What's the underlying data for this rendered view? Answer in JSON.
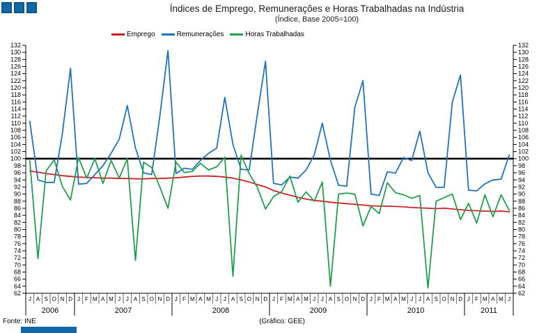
{
  "header": {
    "title": "Índices de Emprego, Remunerações e Horas Trabalhadas na Indústria",
    "subtitle": "(Índice, Base 2005=100)"
  },
  "legend": {
    "items": [
      {
        "label": "Emprego",
        "color": "#ce2024"
      },
      {
        "label": "Remunerações",
        "color": "#2172bd"
      },
      {
        "label": "Horas Trabalhadas",
        "color": "#1fa04d"
      }
    ]
  },
  "footer": {
    "source": "Fonte: INE",
    "credit": "(Gráfico: GEE)"
  },
  "logo": {
    "square_count": 3,
    "fill": "#1168a8",
    "border": "#0c568c"
  },
  "chart_data": {
    "type": "line",
    "title": "Índices de Emprego, Remunerações e Horas Trabalhadas na Indústria (Índice, Base 2005=100)",
    "ylim": [
      62,
      132
    ],
    "ytick_step": 2,
    "reference_line": {
      "value": 100,
      "color": "#000000"
    },
    "axis_color": "#000000",
    "grid": false,
    "legend_position": "top",
    "x_months": [
      "J",
      "A",
      "S",
      "O",
      "N",
      "D",
      "J",
      "F",
      "M",
      "A",
      "M",
      "J",
      "J",
      "A",
      "S",
      "O",
      "N",
      "D",
      "J",
      "F",
      "M",
      "A",
      "M",
      "J",
      "J",
      "A",
      "S",
      "O",
      "N",
      "D",
      "J",
      "F",
      "M",
      "A",
      "M",
      "J",
      "J",
      "A",
      "S",
      "O",
      "N",
      "D",
      "J",
      "F",
      "M",
      "A",
      "M",
      "J",
      "J",
      "A",
      "S",
      "O",
      "N",
      "D",
      "J",
      "F",
      "M",
      "A",
      "M",
      "J"
    ],
    "years": [
      {
        "label": "2006",
        "count": 6
      },
      {
        "label": "2007",
        "count": 12
      },
      {
        "label": "2008",
        "count": 12
      },
      {
        "label": "2009",
        "count": 12
      },
      {
        "label": "2010",
        "count": 12
      },
      {
        "label": "2011",
        "count": 6
      }
    ],
    "series": [
      {
        "name": "Emprego",
        "color": "#ce2024",
        "values": [
          96.5,
          96.2,
          95.8,
          95.5,
          95.2,
          95.0,
          94.8,
          94.7,
          94.6,
          94.5,
          94.5,
          94.4,
          94.4,
          94.3,
          94.3,
          94.4,
          94.4,
          94.5,
          94.6,
          94.8,
          95.0,
          95.1,
          95.1,
          95.0,
          94.8,
          94.5,
          94.0,
          93.4,
          92.7,
          92.0,
          91.0,
          90.3,
          89.7,
          89.1,
          88.6,
          88.2,
          88.0,
          87.7,
          87.5,
          87.3,
          87.1,
          86.9,
          86.7,
          86.6,
          86.6,
          86.5,
          86.4,
          86.2,
          86.1,
          86.0,
          85.9,
          86.0,
          85.8,
          85.6,
          85.4,
          85.3,
          85.2,
          85.1,
          85.2,
          85.0
        ]
      },
      {
        "name": "Remunerações",
        "color": "#2172bd",
        "values": [
          110.5,
          94.0,
          93.3,
          93.3,
          107.0,
          125.5,
          92.8,
          93.0,
          95.5,
          98.0,
          101.5,
          105.5,
          115.0,
          103.0,
          96.0,
          95.5,
          112.0,
          130.5,
          95.8,
          97.3,
          97.0,
          99.5,
          101.5,
          103.0,
          117.3,
          104.0,
          97.0,
          96.8,
          112.5,
          127.5,
          93.0,
          92.6,
          94.8,
          94.5,
          96.8,
          101.0,
          110.0,
          99.5,
          92.5,
          92.2,
          114.5,
          122.0,
          90.0,
          89.6,
          96.3,
          95.9,
          100.3,
          99.5,
          107.8,
          96.0,
          91.9,
          91.9,
          116.0,
          123.6,
          91.1,
          90.9,
          92.9,
          94.0,
          94.2,
          101.0
        ]
      },
      {
        "name": "Horas Trabalhadas",
        "color": "#1fa04d",
        "values": [
          99.4,
          71.8,
          96.5,
          99.7,
          92.2,
          88.3,
          100.3,
          94.5,
          100.0,
          93.0,
          99.5,
          94.5,
          100.0,
          71.3,
          99.0,
          97.5,
          92.0,
          86.0,
          99.0,
          96.1,
          96.4,
          98.7,
          96.8,
          97.7,
          100.4,
          66.8,
          101.0,
          95.8,
          91.9,
          85.8,
          89.3,
          90.7,
          95.1,
          87.7,
          90.6,
          88.0,
          93.4,
          64.0,
          90.0,
          90.3,
          90.0,
          81.0,
          86.5,
          84.5,
          93.2,
          90.4,
          89.8,
          88.8,
          89.6,
          63.5,
          88.0,
          89.0,
          90.0,
          82.8,
          87.4,
          81.8,
          89.8,
          83.6,
          89.8,
          85.4
        ]
      }
    ]
  }
}
